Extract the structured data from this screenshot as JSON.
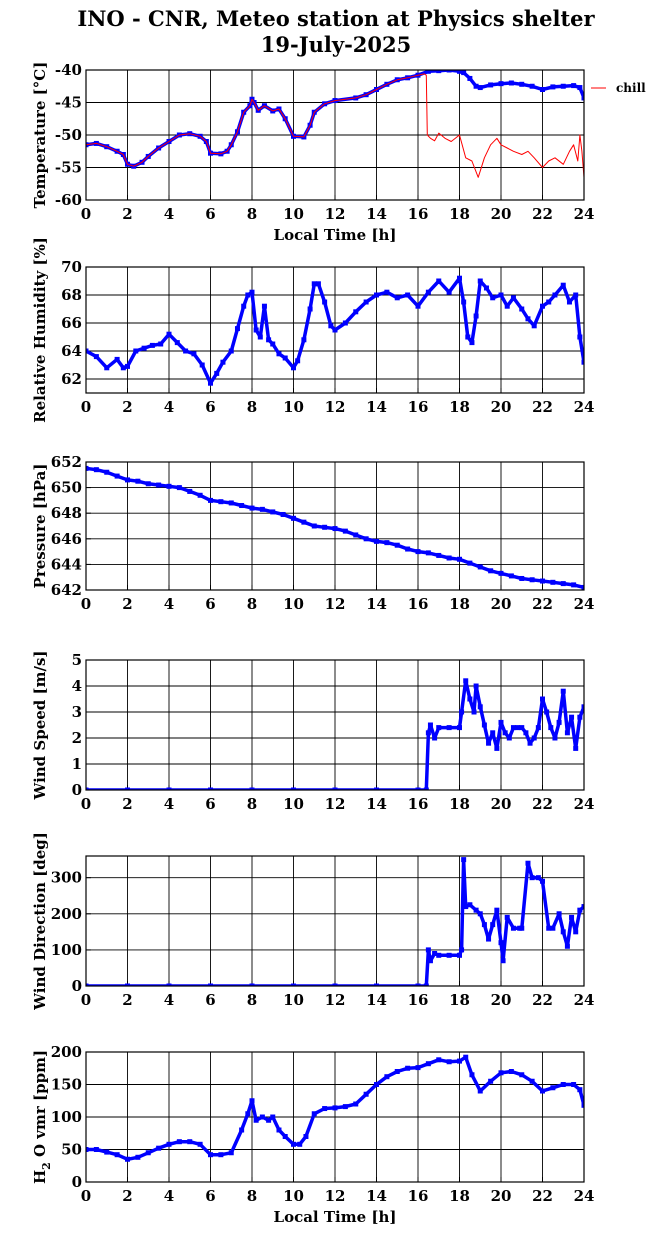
{
  "title_line1": "INO - CNR, Meteo station at Physics shelter",
  "title_line2": "19-July-2025",
  "xlabel": "Local Time [h]",
  "chart_data": [
    {
      "id": "temperature",
      "type": "line",
      "ylabel": "Temperature [°C]",
      "xlabel": "Local Time [h]",
      "xlim": [
        0,
        24
      ],
      "ylim": [
        -60,
        -40
      ],
      "xticks": [
        0,
        2,
        4,
        6,
        8,
        10,
        12,
        14,
        16,
        18,
        20,
        22,
        24
      ],
      "yticks": [
        -60,
        -55,
        -50,
        -45,
        -40
      ],
      "legend": {
        "label": "chill",
        "placement": "right-top"
      },
      "series": [
        {
          "name": "",
          "color": "#0000ff",
          "x": [
            0,
            0.5,
            1,
            1.5,
            1.8,
            2,
            2.3,
            2.7,
            3,
            3.5,
            4,
            4.5,
            5,
            5.5,
            5.8,
            6,
            6.5,
            6.8,
            7,
            7.3,
            7.6,
            7.9,
            8,
            8.1,
            8.3,
            8.6,
            9,
            9.3,
            9.6,
            10,
            10.5,
            10.8,
            11,
            11.5,
            12,
            13,
            13.5,
            14,
            14.5,
            15,
            15.5,
            16,
            16.5,
            17,
            17.5,
            18,
            18.2,
            18.5,
            18.8,
            19,
            19.5,
            20,
            20.5,
            21,
            21.5,
            22,
            22.5,
            23,
            23.5,
            23.8,
            24
          ],
          "y": [
            -51.5,
            -51.3,
            -51.8,
            -52.5,
            -53,
            -54.5,
            -54.8,
            -54.2,
            -53.3,
            -52,
            -51,
            -50,
            -49.8,
            -50.2,
            -51,
            -52.8,
            -52.9,
            -52.5,
            -51.5,
            -49.5,
            -46.5,
            -45.5,
            -44.5,
            -45,
            -46.2,
            -45.5,
            -46.3,
            -46,
            -47.5,
            -50.2,
            -50.3,
            -48.5,
            -46.5,
            -45.2,
            -44.7,
            -44.3,
            -43.8,
            -43,
            -42.2,
            -41.5,
            -41.2,
            -40.8,
            -40.2,
            -40.1,
            -40.0,
            -40.2,
            -40.4,
            -41.3,
            -42.5,
            -42.7,
            -42.3,
            -42.1,
            -42.0,
            -42.2,
            -42.5,
            -43,
            -42.6,
            -42.5,
            -42.4,
            -42.7,
            -44.3
          ]
        },
        {
          "name": "chill",
          "color": "#ff0000",
          "x": [
            0,
            0.5,
            1,
            1.5,
            1.8,
            2,
            2.3,
            2.7,
            3,
            3.5,
            4,
            4.5,
            5,
            5.5,
            5.8,
            6,
            6.5,
            6.8,
            7,
            7.3,
            7.6,
            7.9,
            8,
            8.1,
            8.3,
            8.6,
            9,
            9.3,
            9.6,
            10,
            10.5,
            10.8,
            11,
            11.5,
            12,
            13,
            13.5,
            14,
            14.5,
            15,
            15.5,
            16,
            16.3,
            16.4,
            16.45,
            16.6,
            16.8,
            17,
            17.3,
            17.6,
            18,
            18.3,
            18.6,
            18.9,
            19,
            19.2,
            19.5,
            19.8,
            20,
            20.3,
            20.6,
            21,
            21.3,
            21.6,
            22,
            22.3,
            22.6,
            23,
            23.3,
            23.5,
            23.7,
            23.8,
            23.9,
            24
          ],
          "y": [
            -51.5,
            -51.3,
            -51.8,
            -52.5,
            -53,
            -54.5,
            -54.8,
            -54.2,
            -53.3,
            -52,
            -51,
            -50,
            -49.8,
            -50.2,
            -51,
            -52.8,
            -52.9,
            -52.5,
            -51.5,
            -49.5,
            -46.5,
            -45.5,
            -44.5,
            -45,
            -46.2,
            -45.5,
            -46.3,
            -46,
            -47.5,
            -50.2,
            -50.3,
            -48.5,
            -46.5,
            -45.2,
            -44.7,
            -44.3,
            -43.8,
            -43,
            -42.2,
            -41.5,
            -41.2,
            -40.8,
            -40.6,
            -40.8,
            -50.0,
            -50.5,
            -50.9,
            -49.7,
            -50.5,
            -51.0,
            -50.0,
            -53.5,
            -54.0,
            -56.5,
            -55.5,
            -53.5,
            -51.5,
            -50.5,
            -51.5,
            -52.0,
            -52.5,
            -53.0,
            -52.5,
            -53.5,
            -55.0,
            -54.0,
            -53.5,
            -54.5,
            -52.5,
            -51.5,
            -54.0,
            -50.0,
            -52.5,
            -56.5
          ]
        }
      ]
    },
    {
      "id": "humidity",
      "type": "scatter",
      "ylabel": "Relative Humidity [%]",
      "xlim": [
        0,
        24
      ],
      "ylim": [
        61,
        70
      ],
      "xticks": [
        0,
        2,
        4,
        6,
        8,
        10,
        12,
        14,
        16,
        18,
        20,
        22,
        24
      ],
      "yticks": [
        62,
        64,
        66,
        68,
        70
      ],
      "series": [
        {
          "name": "",
          "color": "#0000ff",
          "x": [
            0,
            0.5,
            1,
            1.5,
            1.8,
            2,
            2.4,
            2.8,
            3.2,
            3.6,
            4,
            4.4,
            4.8,
            5.2,
            5.6,
            6,
            6.3,
            6.6,
            7,
            7.3,
            7.6,
            7.8,
            8,
            8.2,
            8.4,
            8.6,
            8.8,
            9,
            9.3,
            9.6,
            10,
            10.2,
            10.5,
            10.8,
            11,
            11.2,
            11.5,
            11.8,
            12,
            12.5,
            13,
            13.5,
            14,
            14.5,
            15,
            15.5,
            16,
            16.5,
            17,
            17.5,
            18,
            18.2,
            18.4,
            18.6,
            18.8,
            19,
            19.3,
            19.6,
            20,
            20.3,
            20.6,
            21,
            21.3,
            21.6,
            22,
            22.3,
            22.6,
            23,
            23.3,
            23.6,
            23.8,
            24
          ],
          "y": [
            64,
            63.6,
            62.8,
            63.4,
            62.8,
            62.9,
            64,
            64.2,
            64.4,
            64.5,
            65.2,
            64.6,
            64.0,
            63.8,
            63.0,
            61.7,
            62.4,
            63.2,
            64.0,
            65.6,
            67.2,
            68.0,
            68.2,
            65.5,
            65.0,
            67.2,
            64.8,
            64.5,
            63.8,
            63.5,
            62.8,
            63.3,
            64.8,
            67.0,
            68.8,
            68.8,
            67.5,
            65.8,
            65.5,
            66.0,
            66.8,
            67.5,
            68.0,
            68.2,
            67.8,
            68.0,
            67.2,
            68.2,
            69.0,
            68.2,
            69.2,
            67.5,
            65.0,
            64.6,
            66.5,
            69.0,
            68.5,
            67.8,
            68.0,
            67.2,
            67.8,
            67.0,
            66.3,
            65.8,
            67.2,
            67.5,
            68.0,
            68.7,
            67.5,
            68.0,
            65.0,
            63.2
          ]
        }
      ]
    },
    {
      "id": "pressure",
      "type": "scatter",
      "ylabel": "Pressure [hPa]",
      "xlim": [
        0,
        24
      ],
      "ylim": [
        642,
        652
      ],
      "xticks": [
        0,
        2,
        4,
        6,
        8,
        10,
        12,
        14,
        16,
        18,
        20,
        22,
        24
      ],
      "yticks": [
        642,
        644,
        646,
        648,
        650,
        652
      ],
      "series": [
        {
          "name": "",
          "color": "#0000ff",
          "x": [
            0,
            0.5,
            1,
            1.5,
            2,
            2.5,
            3,
            3.5,
            4,
            4.5,
            5,
            5.5,
            6,
            6.5,
            7,
            7.5,
            8,
            8.5,
            9,
            9.5,
            10,
            10.5,
            11,
            11.5,
            12,
            12.5,
            13,
            13.5,
            14,
            14.5,
            15,
            15.5,
            16,
            16.5,
            17,
            17.5,
            18,
            18.5,
            19,
            19.5,
            20,
            20.5,
            21,
            21.5,
            22,
            22.5,
            23,
            23.5,
            24
          ],
          "y": [
            651.5,
            651.4,
            651.2,
            650.9,
            650.6,
            650.5,
            650.3,
            650.2,
            650.1,
            650.0,
            649.7,
            649.4,
            649.0,
            648.9,
            648.8,
            648.6,
            648.4,
            648.3,
            648.1,
            647.9,
            647.6,
            647.3,
            647.0,
            646.9,
            646.8,
            646.6,
            646.3,
            646.0,
            645.8,
            645.7,
            645.5,
            645.2,
            645.0,
            644.9,
            644.7,
            644.5,
            644.4,
            644.1,
            643.8,
            643.5,
            643.3,
            643.1,
            642.9,
            642.8,
            642.7,
            642.6,
            642.5,
            642.4,
            642.2
          ]
        }
      ]
    },
    {
      "id": "wind_speed",
      "type": "scatter",
      "ylabel": "Wind Speed [m/s]",
      "xlim": [
        0,
        24
      ],
      "ylim": [
        0,
        5
      ],
      "xticks": [
        0,
        2,
        4,
        6,
        8,
        10,
        12,
        14,
        16,
        18,
        20,
        22,
        24
      ],
      "yticks": [
        0,
        1,
        2,
        3,
        4,
        5
      ],
      "series": [
        {
          "name": "",
          "color": "#0000ff",
          "x": [
            0,
            2,
            4,
            6,
            8,
            10,
            12,
            14,
            16,
            16.4,
            16.5,
            16.6,
            16.8,
            17,
            17.5,
            18,
            18.1,
            18.3,
            18.5,
            18.7,
            18.8,
            19,
            19.2,
            19.4,
            19.6,
            19.8,
            20,
            20.2,
            20.4,
            20.6,
            20.8,
            21,
            21.2,
            21.4,
            21.6,
            21.8,
            22,
            22.2,
            22.4,
            22.6,
            22.8,
            23,
            23.2,
            23.4,
            23.6,
            23.8,
            24
          ],
          "y": [
            0,
            0,
            0,
            0,
            0,
            0,
            0,
            0,
            0,
            0,
            2.2,
            2.5,
            2.0,
            2.4,
            2.4,
            2.4,
            3.0,
            4.2,
            3.5,
            3.0,
            4.0,
            3.2,
            2.5,
            1.8,
            2.2,
            1.6,
            2.6,
            2.2,
            2.0,
            2.4,
            2.4,
            2.4,
            2.2,
            1.8,
            2.0,
            2.4,
            3.5,
            3.0,
            2.4,
            2.0,
            2.6,
            3.8,
            2.2,
            2.8,
            1.6,
            2.8,
            3.2
          ]
        }
      ]
    },
    {
      "id": "wind_direction",
      "type": "scatter",
      "ylabel": "Wind Direction [deg]",
      "xlim": [
        0,
        24
      ],
      "ylim": [
        0,
        360
      ],
      "xticks": [
        0,
        2,
        4,
        6,
        8,
        10,
        12,
        14,
        16,
        18,
        20,
        22,
        24
      ],
      "yticks": [
        0,
        100,
        200,
        300
      ],
      "series": [
        {
          "name": "",
          "color": "#0000ff",
          "x": [
            0,
            2,
            4,
            6,
            8,
            10,
            12,
            14,
            16,
            16.4,
            16.5,
            16.6,
            16.8,
            17,
            17.5,
            18,
            18.1,
            18.2,
            18.3,
            18.5,
            18.8,
            19,
            19.2,
            19.4,
            19.6,
            19.8,
            20,
            20.1,
            20.3,
            20.6,
            20.9,
            21,
            21.3,
            21.5,
            21.8,
            22,
            22.3,
            22.5,
            22.8,
            23,
            23.2,
            23.4,
            23.6,
            23.8,
            24
          ],
          "y": [
            0,
            0,
            0,
            0,
            0,
            0,
            0,
            0,
            0,
            0,
            100,
            70,
            90,
            85,
            85,
            85,
            100,
            350,
            220,
            225,
            210,
            200,
            170,
            130,
            170,
            210,
            120,
            70,
            190,
            160,
            160,
            160,
            340,
            300,
            300,
            290,
            160,
            160,
            200,
            150,
            110,
            190,
            150,
            210,
            220
          ]
        }
      ]
    },
    {
      "id": "h2o_vmr",
      "type": "scatter",
      "ylabel": "H2O vmr [ppm]",
      "ylabel_main": "H",
      "ylabel_sub": "2",
      "ylabel_rest": "O vmr [ppm]",
      "xlabel": "Local Time [h]",
      "xlim": [
        0,
        24
      ],
      "ylim": [
        0,
        200
      ],
      "xticks": [
        0,
        2,
        4,
        6,
        8,
        10,
        12,
        14,
        16,
        18,
        20,
        22,
        24
      ],
      "yticks": [
        0,
        50,
        100,
        150,
        200
      ],
      "series": [
        {
          "name": "",
          "color": "#0000ff",
          "x": [
            0,
            0.5,
            1,
            1.5,
            2,
            2.5,
            3,
            3.5,
            4,
            4.5,
            5,
            5.5,
            6,
            6.5,
            7,
            7.5,
            7.8,
            8,
            8.2,
            8.5,
            8.8,
            9,
            9.3,
            9.6,
            10,
            10.3,
            10.6,
            11,
            11.5,
            12,
            12.5,
            13,
            13.5,
            14,
            14.5,
            15,
            15.5,
            16,
            16.5,
            17,
            17.5,
            18,
            18.3,
            18.6,
            19,
            19.5,
            20,
            20.5,
            21,
            21.5,
            22,
            22.5,
            23,
            23.5,
            23.8,
            24
          ],
          "y": [
            50,
            50,
            46,
            42,
            35,
            38,
            45,
            52,
            58,
            62,
            62,
            58,
            42,
            42,
            45,
            80,
            105,
            125,
            95,
            100,
            95,
            100,
            80,
            70,
            58,
            58,
            70,
            105,
            113,
            114,
            116,
            120,
            135,
            150,
            162,
            170,
            175,
            176,
            182,
            188,
            185,
            186,
            192,
            165,
            140,
            155,
            168,
            170,
            165,
            155,
            140,
            145,
            150,
            150,
            142,
            118
          ]
        }
      ]
    }
  ]
}
